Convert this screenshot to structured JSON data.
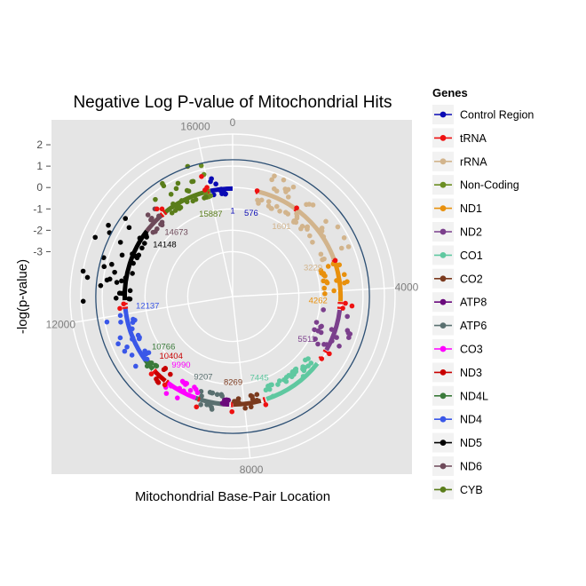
{
  "chart_data": {
    "type": "scatter",
    "projection": "polar",
    "title": "Negative Log P-value of Mitochondrial Hits",
    "xlabel": "Mitochondrial Base-Pair Location",
    "ylabel": "-log(p-value)",
    "theta_ticks": [
      "0",
      "4000",
      "8000",
      "12000",
      "16000"
    ],
    "theta_tick_values": [
      0,
      4000,
      8000,
      12000,
      16000
    ],
    "genome_length": 16569,
    "r_ticks": [
      "2",
      "1",
      "0",
      "-1",
      "-2",
      "-3"
    ],
    "r_tick_values": [
      2,
      1,
      0,
      -1,
      -2,
      -3
    ],
    "r_range": [
      -5.1,
      2.5
    ],
    "threshold": 1.3,
    "threshold_color": "#2b4e73",
    "grid": true,
    "legend_title": "Genes",
    "legend_position": "right",
    "genes": [
      {
        "name": "Control Region",
        "color": "#0a0ab4",
        "start": 16024,
        "end": 16569,
        "y_min": -0.3,
        "y_max": 0.6
      },
      {
        "name": "tRNA",
        "color": "#ee1111",
        "start": 0,
        "end": 0,
        "y_min": -0.5,
        "y_max": 0.9
      },
      {
        "name": "rRNA",
        "color": "#d2b48c",
        "start": 648,
        "end": 3229,
        "y_min": -0.6,
        "y_max": 0.9
      },
      {
        "name": "Non-Coding",
        "color": "#6b8e23",
        "start": 15887,
        "end": 16024,
        "y_min": -0.3,
        "y_max": 1.3
      },
      {
        "name": "ND1",
        "color": "#e8900c",
        "start": 3307,
        "end": 4262,
        "y_min": -0.8,
        "y_max": 0.4
      },
      {
        "name": "ND2",
        "color": "#7b3f8c",
        "start": 4470,
        "end": 5511,
        "y_min": -1.0,
        "y_max": 0.7
      },
      {
        "name": "CO1",
        "color": "#5fc8a0",
        "start": 5904,
        "end": 7445,
        "y_min": -0.6,
        "y_max": 0.0
      },
      {
        "name": "CO2",
        "color": "#7b3a1e",
        "start": 7586,
        "end": 8269,
        "y_min": -0.4,
        "y_max": 0.2
      },
      {
        "name": "ATP8",
        "color": "#6a0a7c",
        "start": 8366,
        "end": 8572,
        "y_min": -0.3,
        "y_max": 0.1
      },
      {
        "name": "ATP6",
        "color": "#5a7070",
        "start": 8527,
        "end": 9207,
        "y_min": -0.5,
        "y_max": 0.3
      },
      {
        "name": "CO3",
        "color": "#ff00ff",
        "start": 9207,
        "end": 9990,
        "y_min": -0.5,
        "y_max": 0.4
      },
      {
        "name": "ND3",
        "color": "#c80000",
        "start": 10059,
        "end": 10404,
        "y_min": -0.5,
        "y_max": 0.3
      },
      {
        "name": "ND4L",
        "color": "#3a7a3a",
        "start": 10470,
        "end": 10766,
        "y_min": -0.3,
        "y_max": 0.1
      },
      {
        "name": "ND4",
        "color": "#3a57e8",
        "start": 10760,
        "end": 12137,
        "y_min": -0.4,
        "y_max": 1.1
      },
      {
        "name": "ND5",
        "color": "#000000",
        "start": 12337,
        "end": 14148,
        "y_min": -0.3,
        "y_max": 2.0
      },
      {
        "name": "ND6",
        "color": "#6e4a5a",
        "start": 14149,
        "end": 14673,
        "y_min": -0.4,
        "y_max": 0.6
      },
      {
        "name": "CYB",
        "color": "#5a7d1a",
        "start": 14747,
        "end": 15887,
        "y_min": -0.3,
        "y_max": 1.4
      }
    ],
    "gene_start_labels": [
      {
        "text": "576",
        "pos": 576,
        "color": "#0a0ab4"
      },
      {
        "text": "1",
        "pos": 1,
        "color": "#0a0ab4"
      },
      {
        "text": "1601",
        "pos": 1601,
        "color": "#d2b48c"
      },
      {
        "text": "3229",
        "pos": 3229,
        "color": "#d2b48c"
      },
      {
        "text": "4262",
        "pos": 4262,
        "color": "#e8900c"
      },
      {
        "text": "5511",
        "pos": 5511,
        "color": "#7b3f8c"
      },
      {
        "text": "7445",
        "pos": 7445,
        "color": "#5fc8a0"
      },
      {
        "text": "8269",
        "pos": 8269,
        "color": "#7b3a1e"
      },
      {
        "text": "9207",
        "pos": 9207,
        "color": "#5a7070"
      },
      {
        "text": "9990",
        "pos": 9990,
        "color": "#ff00ff"
      },
      {
        "text": "10404",
        "pos": 10404,
        "color": "#c80000"
      },
      {
        "text": "10766",
        "pos": 10766,
        "color": "#3a7a3a"
      },
      {
        "text": "12137",
        "pos": 12137,
        "color": "#3a57e8"
      },
      {
        "text": "14148",
        "pos": 14148,
        "color": "#000000"
      },
      {
        "text": "14673",
        "pos": 14673,
        "color": "#6e4a5a"
      },
      {
        "text": "15887",
        "pos": 15887,
        "color": "#5a7d1a"
      }
    ],
    "trna_positions": [
      600,
      1650,
      3250,
      4300,
      4420,
      5550,
      5750,
      7500,
      8300,
      9120,
      10010,
      10420,
      12150,
      12250,
      14690,
      14780,
      15900,
      15960
    ],
    "points": [
      {
        "gene": "Control Region",
        "x": 16100,
        "y": 0.5
      },
      {
        "gene": "Non-Coding",
        "x": 15950,
        "y": 1.2
      },
      {
        "gene": "tRNA",
        "x": 15900,
        "y": 0.7
      },
      {
        "gene": "CYB",
        "x": 15100,
        "y": 1.0
      },
      {
        "gene": "CYB",
        "x": 15300,
        "y": 0.6
      },
      {
        "gene": "CYB",
        "x": 15500,
        "y": 0.3
      },
      {
        "gene": "ND6",
        "x": 14450,
        "y": 0.4
      },
      {
        "gene": "ND5",
        "x": 13800,
        "y": 1.6
      },
      {
        "gene": "ND5",
        "x": 13500,
        "y": 1.9
      },
      {
        "gene": "ND5",
        "x": 13200,
        "y": 1.2
      },
      {
        "gene": "ND5",
        "x": 12800,
        "y": 0.7
      },
      {
        "gene": "ND4",
        "x": 11900,
        "y": 0.9
      },
      {
        "gene": "ND4",
        "x": 11500,
        "y": 0.5
      },
      {
        "gene": "ND3",
        "x": 10200,
        "y": 0.2
      },
      {
        "gene": "CO3",
        "x": 9600,
        "y": 0.3
      },
      {
        "gene": "ATP6",
        "x": 8900,
        "y": 0.1
      },
      {
        "gene": "CO1",
        "x": 6800,
        "y": -0.4
      },
      {
        "gene": "ND2",
        "x": 4900,
        "y": 0.5
      },
      {
        "gene": "ND1",
        "x": 3800,
        "y": 0.3
      },
      {
        "gene": "tRNA",
        "x": 4350,
        "y": 0.5
      },
      {
        "gene": "rRNA",
        "x": 2600,
        "y": 0.8
      },
      {
        "gene": "rRNA",
        "x": 1900,
        "y": 0.6
      },
      {
        "gene": "rRNA",
        "x": 1200,
        "y": 0.5
      }
    ]
  }
}
